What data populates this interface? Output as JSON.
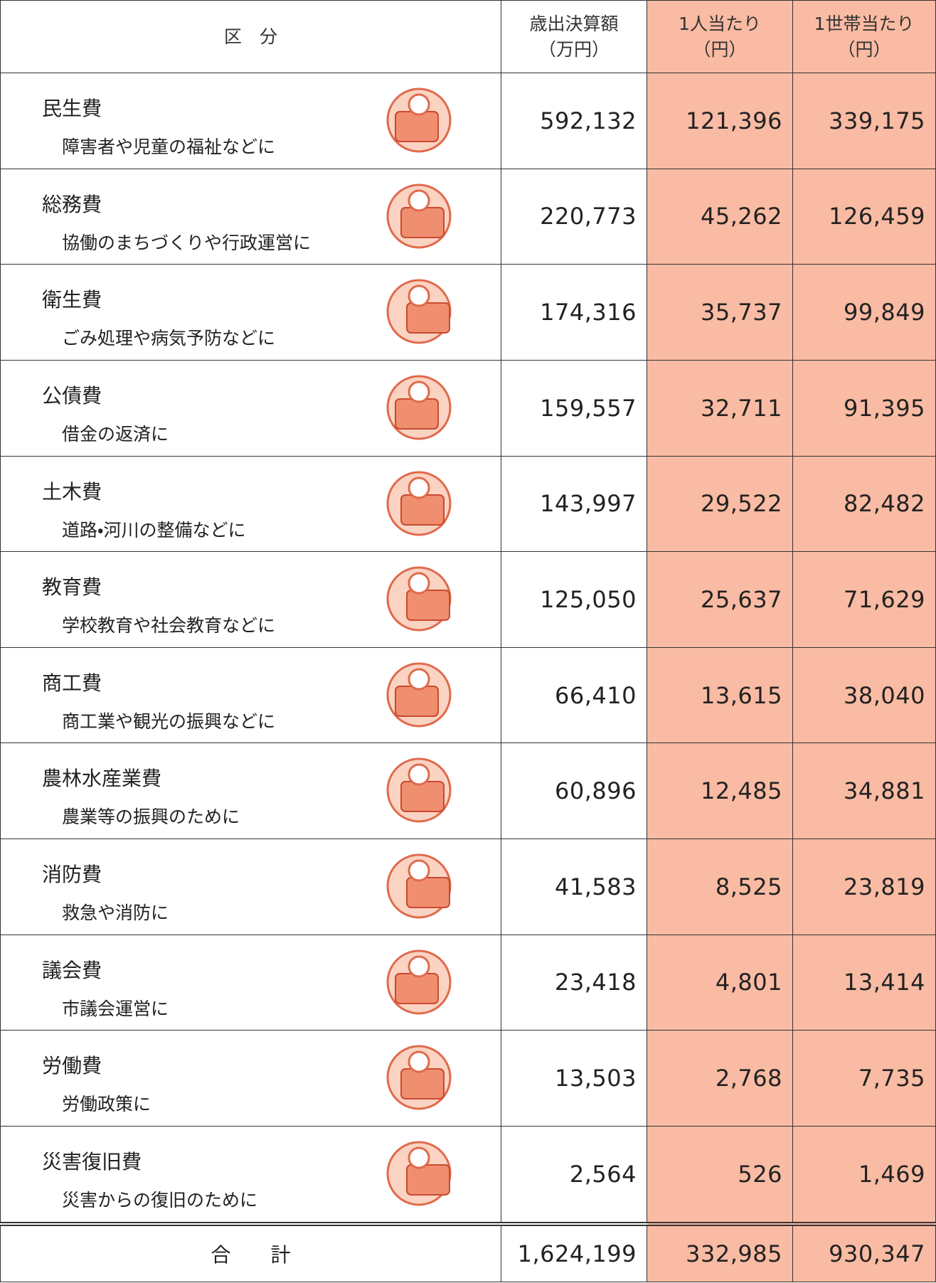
{
  "table": {
    "header": {
      "category": "区　分",
      "total_line1": "歳出決算額",
      "total_line2": "（万円）",
      "per_person_line1": "1人当たり",
      "per_person_line2": "（円）",
      "per_household_line1": "1世帯当たり",
      "per_household_line2": "（円）"
    },
    "rows": [
      {
        "category": "民生費",
        "description": "障害者や児童の福祉などに",
        "total": "592,132",
        "per_person": "121,396",
        "per_household": "339,175"
      },
      {
        "category": "総務費",
        "description": "協働のまちづくりや行政運営に",
        "total": "220,773",
        "per_person": "45,262",
        "per_household": "126,459"
      },
      {
        "category": "衛生費",
        "description": "ごみ処理や病気予防などに",
        "total": "174,316",
        "per_person": "35,737",
        "per_household": "99,849"
      },
      {
        "category": "公債費",
        "description": "借金の返済に",
        "total": "159,557",
        "per_person": "32,711",
        "per_household": "91,395"
      },
      {
        "category": "土木費",
        "description": "道路・河川の整備などに",
        "total": "143,997",
        "per_person": "29,522",
        "per_household": "82,482"
      },
      {
        "category": "教育費",
        "description": "学校教育や社会教育などに",
        "total": "125,050",
        "per_person": "25,637",
        "per_household": "71,629"
      },
      {
        "category": "商工費",
        "description": "商工業や観光の振興などに",
        "total": "66,410",
        "per_person": "13,615",
        "per_household": "38,040"
      },
      {
        "category": "農林水産業費",
        "description": "農業等の振興のために",
        "total": "60,896",
        "per_person": "12,485",
        "per_household": "34,881"
      },
      {
        "category": "消防費",
        "description": "救急や消防に",
        "total": "41,583",
        "per_person": "8,525",
        "per_household": "23,819"
      },
      {
        "category": "議会費",
        "description": "市議会運営に",
        "total": "23,418",
        "per_person": "4,801",
        "per_household": "13,414"
      },
      {
        "category": "労働費",
        "description": "労働政策に",
        "total": "13,503",
        "per_person": "2,768",
        "per_household": "7,735"
      },
      {
        "category": "災害復旧費",
        "description": "災害からの復旧のために",
        "total": "2,564",
        "per_person": "526",
        "per_household": "1,469"
      }
    ],
    "total": {
      "label": "合　　計",
      "total": "1,624,199",
      "per_person": "332,985",
      "per_household": "930,347"
    }
  }
}
